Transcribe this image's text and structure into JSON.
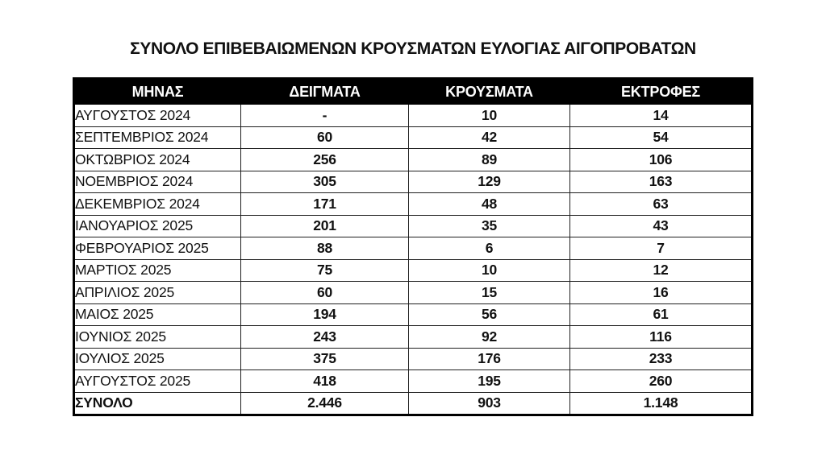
{
  "title": "ΣΥΝΟΛΟ ΕΠΙΒΕΒΑΙΩΜΕΝΩΝ ΚΡΟΥΣΜΑΤΩΝ ΕΥΛΟΓΙΑΣ ΑΙΓΟΠΡΟΒΑΤΩΝ",
  "table": {
    "columns": [
      "ΜΗΝΑΣ",
      "ΔΕΙΓΜΑΤΑ",
      "ΚΡΟΥΣΜΑΤΑ",
      "ΕΚΤΡΟΦΕΣ"
    ],
    "rows": [
      {
        "month": "ΑΥΓΟΥΣΤΟΣ 2024",
        "samples": "-",
        "cases": "10",
        "farms": "14"
      },
      {
        "month": "ΣΕΠΤΕΜΒΡΙΟΣ 2024",
        "samples": "60",
        "cases": "42",
        "farms": "54"
      },
      {
        "month": "ΟΚΤΩΒΡΙΟΣ 2024",
        "samples": "256",
        "cases": "89",
        "farms": "106"
      },
      {
        "month": "ΝΟΕΜΒΡΙΟΣ 2024",
        "samples": "305",
        "cases": "129",
        "farms": "163"
      },
      {
        "month": "ΔΕΚΕΜΒΡΙΟΣ 2024",
        "samples": "171",
        "cases": "48",
        "farms": "63"
      },
      {
        "month": "ΙΑΝΟΥΑΡΙΟΣ 2025",
        "samples": "201",
        "cases": "35",
        "farms": "43"
      },
      {
        "month": "ΦΕΒΡΟΥΑΡΙΟΣ 2025",
        "samples": "88",
        "cases": "6",
        "farms": "7"
      },
      {
        "month": "ΜΑΡΤΙΟΣ 2025",
        "samples": "75",
        "cases": "10",
        "farms": "12"
      },
      {
        "month": "ΑΠΡΙΛΙΟΣ 2025",
        "samples": "60",
        "cases": "15",
        "farms": "16"
      },
      {
        "month": "ΜΑΙΟΣ 2025",
        "samples": "194",
        "cases": "56",
        "farms": "61"
      },
      {
        "month": "ΙΟΥΝΙΟΣ 2025",
        "samples": "243",
        "cases": "92",
        "farms": "116"
      },
      {
        "month": "ΙΟΥΛΙΟΣ 2025",
        "samples": "375",
        "cases": "176",
        "farms": "233"
      },
      {
        "month": "ΑΥΓΟΥΣΤΟΣ 2025",
        "samples": "418",
        "cases": "195",
        "farms": "260"
      }
    ],
    "total": {
      "month": "ΣΥΝΟΛΟ",
      "samples": "2.446",
      "cases": "903",
      "farms": "1.148"
    }
  },
  "colors": {
    "header_bg": "#000000",
    "header_text": "#ffffff",
    "border": "#1f1f1f",
    "text": "#111111"
  }
}
